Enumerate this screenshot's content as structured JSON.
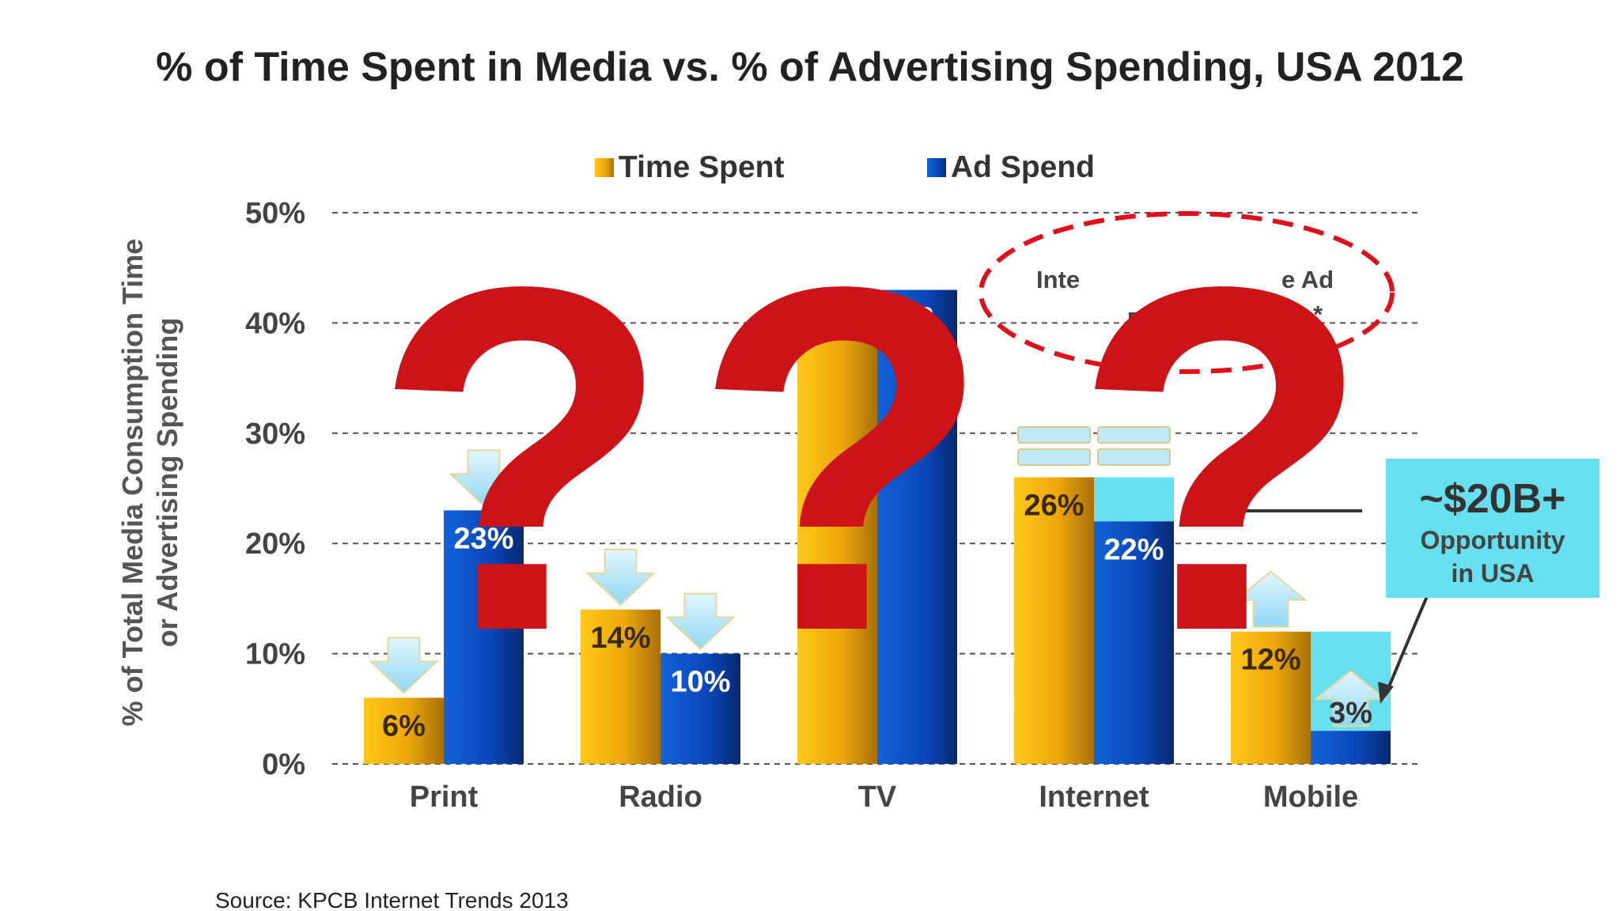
{
  "chart_data": {
    "type": "bar",
    "title": "% of Time Spent in Media vs. % of Advertising Spending, USA 2012",
    "ylabel_lines": [
      "% of Total Media Consumption Time",
      "or Advertising Spending"
    ],
    "xlabel": "",
    "categories": [
      "Print",
      "Radio",
      "TV",
      "Internet",
      "Mobile"
    ],
    "series": [
      {
        "name": "Time Spent",
        "values": [
          6,
          14,
          42,
          26,
          12
        ],
        "labels": [
          "6%",
          "14%",
          "42%",
          "26%",
          "12%"
        ]
      },
      {
        "name": "Ad Spend",
        "values": [
          23,
          10,
          43,
          22,
          3
        ],
        "labels": [
          "23%",
          "10%",
          "43",
          "22%",
          "3%"
        ]
      }
    ],
    "ylim": [
      0,
      50
    ],
    "yticks": [
      0,
      10,
      20,
      30,
      40,
      50
    ],
    "ytick_labels": [
      "0%",
      "10%",
      "20%",
      "30%",
      "40%",
      "50%"
    ],
    "grid": true,
    "legend_position": "top",
    "colors": {
      "time_spent": "#f2b10c",
      "ad_spend": "#0a46b8",
      "opportunity": "#66e0ee"
    },
    "opportunity_gaps": [
      {
        "category": "Internet",
        "top_value": 26
      },
      {
        "category": "Mobile",
        "top_value": 12
      }
    ],
    "arrows": [
      {
        "category": "Print",
        "series": "Time Spent",
        "direction": "down"
      },
      {
        "category": "Print",
        "series": "Ad Spend",
        "direction": "down"
      },
      {
        "category": "Radio",
        "series": "Time Spent",
        "direction": "down"
      },
      {
        "category": "Radio",
        "series": "Ad Spend",
        "direction": "down"
      },
      {
        "category": "Mobile",
        "series": "Time Spent",
        "direction": "up"
      },
      {
        "category": "Mobile",
        "series": "Ad Spend",
        "direction": "up"
      }
    ],
    "callout": {
      "headline": "~$20B+",
      "line1": "Opportunity",
      "line2": "in USA"
    },
    "oval_fragments": {
      "top_left": "Inte",
      "top_right": "e Ad",
      "bottom_left": "B*",
      "bottom_right": "*"
    },
    "overlay_symbol": "?",
    "source": "Source: KPCB Internet Trends 2013"
  }
}
